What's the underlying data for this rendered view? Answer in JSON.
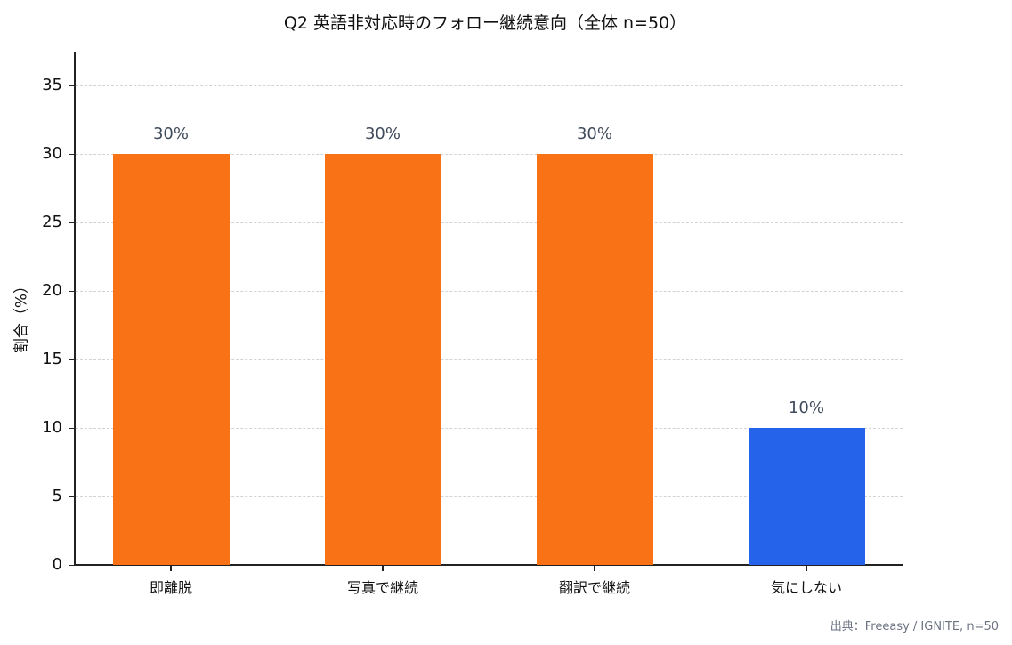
{
  "chart_data": {
    "type": "bar",
    "title": "Q2 英語非対応時のフォロー継続意向（全体 n=50）",
    "xlabel": "",
    "ylabel": "割合（%）",
    "categories": [
      "即離脱",
      "写真で継続",
      "翻訳で継続",
      "気にしない"
    ],
    "values": [
      30,
      30,
      30,
      10
    ],
    "value_labels": [
      "30%",
      "30%",
      "30%",
      "10%"
    ],
    "colors": [
      "#f97316",
      "#f97316",
      "#f97316",
      "#2563eb"
    ],
    "ylim": [
      0,
      37.5
    ],
    "yticks": [
      0,
      5,
      10,
      15,
      20,
      25,
      30,
      35
    ],
    "grid": true,
    "grid_style": "dashed-horizontal",
    "legend": null,
    "source_note": "出典：Freeasy / IGNITE, n=50"
  },
  "title": "Q2 英語非対応時のフォロー継続意向（全体 n=50）",
  "yaxis": {
    "title": "割合（%）",
    "ticks": [
      "0",
      "5",
      "10",
      "15",
      "20",
      "25",
      "30",
      "35"
    ]
  },
  "bars": [
    {
      "category": "即離脱",
      "value": 30,
      "label": "30%",
      "color": "#f97316"
    },
    {
      "category": "写真で継続",
      "value": 30,
      "label": "30%",
      "color": "#f97316"
    },
    {
      "category": "翻訳で継続",
      "value": 30,
      "label": "30%",
      "color": "#f97316"
    },
    {
      "category": "気にしない",
      "value": 10,
      "label": "10%",
      "color": "#2563eb"
    }
  ],
  "source": "出典：Freeasy / IGNITE, n=50"
}
